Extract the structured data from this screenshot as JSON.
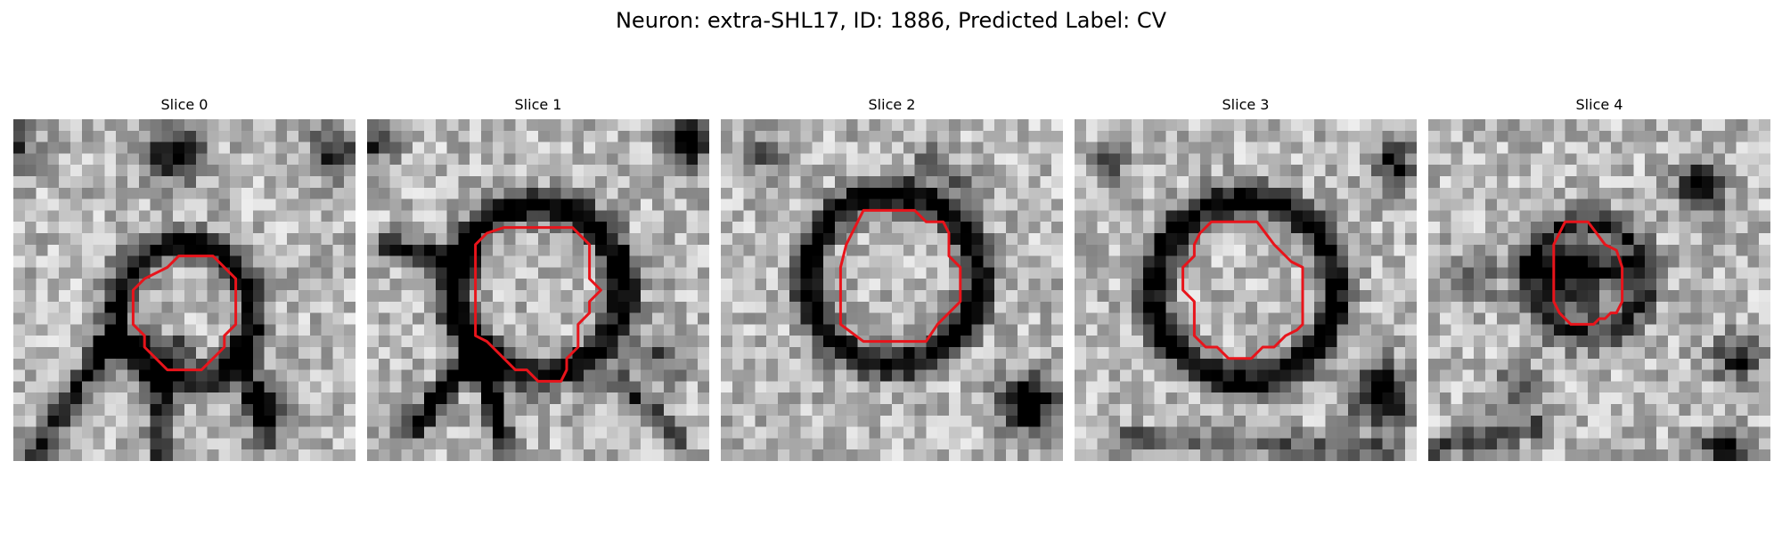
{
  "figure": {
    "title": "Neuron: extra-SHL17, ID: 1886, Predicted Label: CV"
  },
  "colors": {
    "contour": "#e8141b",
    "background": "#ffffff",
    "colormap": "grayscale"
  },
  "slices": [
    {
      "label": "Slice 0",
      "contour_grid": [
        [
          14.5,
          12
        ],
        [
          17.5,
          12
        ],
        [
          19.5,
          14
        ],
        [
          19.5,
          18
        ],
        [
          18.5,
          19
        ],
        [
          18.5,
          20
        ],
        [
          17.5,
          21
        ],
        [
          16.5,
          22
        ],
        [
          13.5,
          22
        ],
        [
          12.5,
          21
        ],
        [
          11.5,
          20
        ],
        [
          11.5,
          19
        ],
        [
          10.5,
          18
        ],
        [
          10.5,
          15
        ],
        [
          11.5,
          14
        ],
        [
          13.5,
          13
        ]
      ]
    },
    {
      "label": "Slice 1",
      "contour_grid": [
        [
          12,
          9.5
        ],
        [
          18,
          9.5
        ],
        [
          19.5,
          11
        ],
        [
          19.5,
          14
        ],
        [
          20.5,
          15
        ],
        [
          19.5,
          16
        ],
        [
          19.5,
          17
        ],
        [
          18.5,
          18
        ],
        [
          18.5,
          20
        ],
        [
          17.5,
          21
        ],
        [
          17.5,
          22
        ],
        [
          17,
          23
        ],
        [
          15,
          23
        ],
        [
          14,
          22
        ],
        [
          13,
          22
        ],
        [
          10.5,
          19.5
        ],
        [
          9.5,
          19
        ],
        [
          9.5,
          11
        ],
        [
          10.5,
          10
        ]
      ]
    },
    {
      "label": "Slice 2",
      "contour_grid": [
        [
          12.5,
          8
        ],
        [
          17,
          8
        ],
        [
          18,
          9
        ],
        [
          19.5,
          9
        ],
        [
          20,
          10
        ],
        [
          20,
          12
        ],
        [
          21,
          13
        ],
        [
          21,
          16
        ],
        [
          19,
          18
        ],
        [
          18,
          19.5
        ],
        [
          12.5,
          19.5
        ],
        [
          10.5,
          18
        ],
        [
          10.5,
          13
        ],
        [
          11,
          11
        ],
        [
          11.5,
          10
        ]
      ]
    },
    {
      "label": "Slice 3",
      "contour_grid": [
        [
          12,
          9
        ],
        [
          16,
          9
        ],
        [
          17.5,
          11
        ],
        [
          19,
          12.5
        ],
        [
          20,
          13
        ],
        [
          20,
          18
        ],
        [
          19.5,
          18.5
        ],
        [
          18.5,
          19
        ],
        [
          17.5,
          20
        ],
        [
          16.5,
          20
        ],
        [
          15.5,
          21
        ],
        [
          13.5,
          21
        ],
        [
          12.5,
          20
        ],
        [
          11.5,
          20
        ],
        [
          10.5,
          19
        ],
        [
          10.5,
          16
        ],
        [
          9.5,
          15
        ],
        [
          9.5,
          13
        ],
        [
          10.5,
          12
        ],
        [
          10.5,
          11
        ],
        [
          11,
          10
        ]
      ]
    },
    {
      "label": "Slice 4",
      "contour_grid": [
        [
          12,
          9
        ],
        [
          14,
          9
        ],
        [
          15.5,
          11
        ],
        [
          16.5,
          11.5
        ],
        [
          17,
          13
        ],
        [
          17,
          16
        ],
        [
          16.5,
          17
        ],
        [
          16,
          17
        ],
        [
          15.5,
          17.5
        ],
        [
          15,
          17.5
        ],
        [
          14.5,
          18
        ],
        [
          12.5,
          18
        ],
        [
          11.5,
          17
        ],
        [
          11,
          16
        ],
        [
          11,
          11
        ],
        [
          11.5,
          10
        ]
      ]
    }
  ]
}
